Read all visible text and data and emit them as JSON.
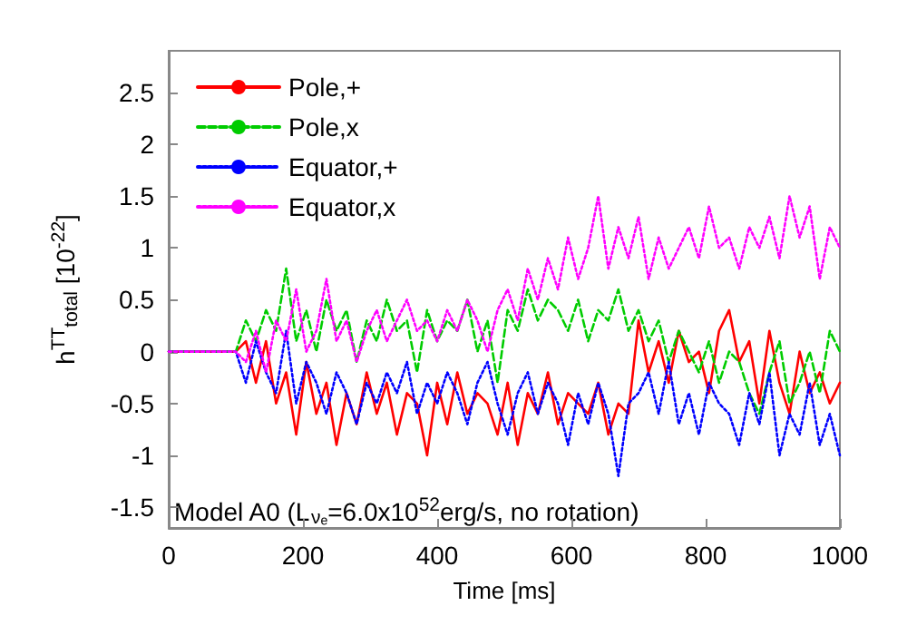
{
  "chart_data": {
    "type": "line",
    "xlabel": "Time [ms]",
    "ylabel": "h$^{TT}$$_{total}$ [10$^{-22}$]",
    "annotations": [
      "Model A0 (L$_{νₑ}$=6.0x10$^{52}$erg/s, no rotation)"
    ],
    "x": [
      0,
      100,
      115,
      130,
      145,
      160,
      175,
      190,
      205,
      220,
      235,
      250,
      265,
      280,
      295,
      310,
      325,
      340,
      355,
      370,
      385,
      400,
      415,
      430,
      445,
      460,
      475,
      490,
      505,
      520,
      535,
      550,
      565,
      580,
      595,
      610,
      625,
      640,
      655,
      670,
      685,
      700,
      715,
      730,
      745,
      760,
      775,
      790,
      805,
      820,
      835,
      850,
      865,
      880,
      895,
      910,
      925,
      940,
      955,
      970,
      985,
      1000
    ],
    "series": [
      {
        "name": "Pole,+",
        "color": "#ff0000",
        "line_style": "solid",
        "values": [
          0,
          0,
          0.1,
          -0.3,
          0.1,
          -0.5,
          -0.2,
          -0.8,
          -0.1,
          -0.6,
          -0.3,
          -0.9,
          -0.4,
          -0.7,
          -0.2,
          -0.6,
          -0.3,
          -0.8,
          -0.4,
          -0.5,
          -1.0,
          -0.3,
          -0.7,
          -0.2,
          -0.6,
          -0.4,
          -0.5,
          -0.8,
          -0.3,
          -0.9,
          -0.4,
          -0.6,
          -0.2,
          -0.7,
          -0.4,
          -0.5,
          -0.6,
          -0.3,
          -0.8,
          -0.5,
          -0.6,
          0.3,
          -0.2,
          0.1,
          -0.3,
          0.2,
          -0.1,
          0.0,
          -0.4,
          0.2,
          0.4,
          -0.1,
          0.1,
          -0.5,
          0.2,
          -0.3,
          -0.6,
          0.0,
          -0.4,
          -0.2,
          -0.5,
          -0.3
        ]
      },
      {
        "name": "Pole,x",
        "color": "#00cc00",
        "line_style": "dashed",
        "values": [
          0,
          0,
          0.3,
          0.1,
          0.4,
          0.2,
          0.8,
          0.1,
          0.4,
          0.0,
          0.5,
          0.2,
          0.4,
          -0.1,
          0.3,
          0.1,
          0.5,
          0.2,
          0.3,
          -0.2,
          0.4,
          0.1,
          0.3,
          0.2,
          0.5,
          0.0,
          0.3,
          -0.3,
          0.4,
          0.2,
          0.6,
          0.3,
          0.5,
          0.4,
          0.2,
          0.5,
          0.1,
          0.4,
          0.3,
          0.6,
          0.2,
          0.4,
          0.1,
          0.3,
          -0.1,
          0.2,
          0.0,
          -0.2,
          0.1,
          -0.3,
          0.0,
          -0.1,
          -0.4,
          -0.6,
          -0.2,
          0.1,
          -0.5,
          -0.3,
          0.0,
          -0.4,
          0.2,
          0.0
        ]
      },
      {
        "name": "Equator,+",
        "color": "#0000ff",
        "line_style": "dotted",
        "values": [
          0,
          0,
          -0.3,
          0.1,
          -0.2,
          -0.4,
          0.2,
          -0.5,
          -0.1,
          -0.3,
          -0.6,
          -0.2,
          -0.4,
          -0.7,
          -0.3,
          -0.5,
          -0.2,
          -0.4,
          -0.1,
          -0.6,
          -0.3,
          -0.5,
          -0.2,
          -0.4,
          -0.7,
          -0.3,
          -0.1,
          -0.5,
          -0.8,
          -0.4,
          -0.2,
          -0.6,
          -0.3,
          -0.5,
          -0.9,
          -0.4,
          -0.7,
          -0.3,
          -0.6,
          -1.2,
          -0.5,
          -0.4,
          -0.2,
          -0.6,
          -0.1,
          -0.7,
          -0.4,
          -0.8,
          -0.3,
          -0.5,
          -0.6,
          -0.9,
          -0.4,
          -0.7,
          -0.2,
          -1.0,
          -0.6,
          -0.8,
          -0.3,
          -0.9,
          -0.6,
          -1.0
        ]
      },
      {
        "name": "Equator,x",
        "color": "#ff00ff",
        "line_style": "dotted",
        "values": [
          0,
          0,
          -0.1,
          0.2,
          -0.2,
          0.3,
          0.1,
          0.6,
          0.0,
          0.2,
          0.7,
          0.1,
          0.3,
          -0.1,
          0.2,
          0.4,
          0.1,
          0.3,
          0.5,
          0.2,
          0.3,
          0.1,
          0.4,
          0.2,
          0.5,
          0.3,
          0.0,
          0.4,
          0.6,
          0.3,
          0.8,
          0.5,
          0.9,
          0.6,
          1.1,
          0.7,
          1.0,
          1.5,
          0.8,
          1.2,
          0.9,
          1.3,
          0.7,
          1.1,
          0.8,
          1.0,
          1.2,
          0.9,
          1.4,
          1.0,
          1.1,
          0.8,
          1.2,
          1.0,
          1.3,
          0.9,
          1.5,
          1.1,
          1.4,
          0.7,
          1.2,
          1.0
        ]
      }
    ],
    "xlim": [
      0,
      1000
    ],
    "xticks": [
      0,
      200,
      400,
      600,
      800,
      1000
    ],
    "ylim": [
      -1.7,
      2.9
    ],
    "yticks": [
      -1.5,
      -1,
      -0.5,
      0,
      0.5,
      1,
      1.5,
      2,
      2.5
    ],
    "grid": false,
    "legend": "top left",
    "marker": "none"
  }
}
